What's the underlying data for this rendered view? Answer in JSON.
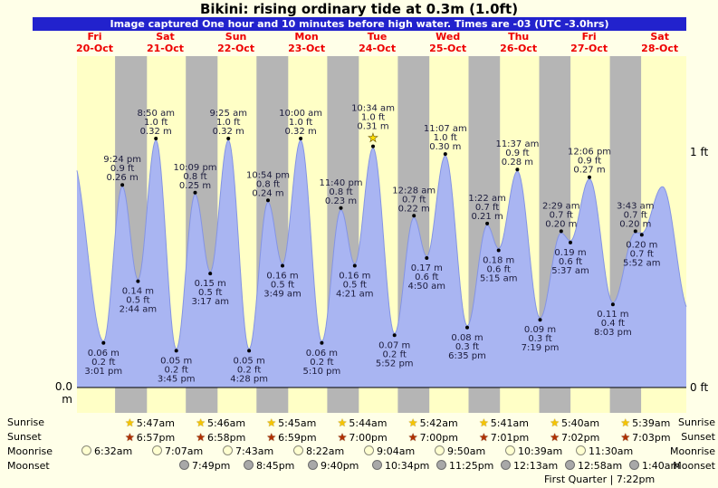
{
  "title": "Bikini: rising ordinary tide at 0.3m (1.0ft)",
  "banner": "Image captured One hour and 10 minutes before high water. Times are -03 (UTC -3.0hrs)",
  "days": [
    {
      "name": "Fri",
      "date": "20-Oct"
    },
    {
      "name": "Sat",
      "date": "21-Oct"
    },
    {
      "name": "Sun",
      "date": "22-Oct"
    },
    {
      "name": "Mon",
      "date": "23-Oct"
    },
    {
      "name": "Tue",
      "date": "24-Oct"
    },
    {
      "name": "Wed",
      "date": "25-Oct"
    },
    {
      "name": "Thu",
      "date": "26-Oct"
    },
    {
      "name": "Fri",
      "date": "27-Oct"
    },
    {
      "name": "Sat",
      "date": "28-Oct"
    }
  ],
  "axis": {
    "left_zero_m": "0.0 m",
    "right_one_ft": "1 ft",
    "right_zero_ft": "0 ft"
  },
  "chart_data": {
    "type": "area",
    "x_span_hours": [
      6,
      213
    ],
    "ylim_m": [
      0,
      0.43
    ],
    "y_left_ticks": [
      "0.0 m"
    ],
    "y_right_ticks": [
      "1 ft",
      "0 ft"
    ],
    "legend": "none",
    "day_night_bands": true,
    "events": [
      {
        "t": 15.02,
        "height_m": 0.06,
        "type": "low",
        "time": "3:01 pm",
        "ft": "0.2 ft",
        "m": "0.06 m"
      },
      {
        "t": 21.4,
        "height_m": 0.26,
        "type": "high",
        "time": "9:24 pm",
        "ft": "0.9 ft",
        "m": "0.26 m"
      },
      {
        "t": 26.73,
        "height_m": 0.14,
        "type": "low",
        "time": "2:44 am",
        "ft": "0.5 ft",
        "m": "0.14 m"
      },
      {
        "t": 32.83,
        "height_m": 0.32,
        "type": "high",
        "time": "8:50 am",
        "ft": "1.0 ft",
        "m": "0.32 m"
      },
      {
        "t": 39.75,
        "height_m": 0.05,
        "type": "low",
        "time": "3:45 pm",
        "ft": "0.2 ft",
        "m": "0.05 m"
      },
      {
        "t": 46.15,
        "height_m": 0.25,
        "type": "high",
        "time": "10:09 pm",
        "ft": "0.8 ft",
        "m": "0.25 m"
      },
      {
        "t": 51.28,
        "height_m": 0.15,
        "type": "low",
        "time": "3:17 am",
        "ft": "0.5 ft",
        "m": "0.15 m"
      },
      {
        "t": 57.42,
        "height_m": 0.32,
        "type": "high",
        "time": "9:25 am",
        "ft": "1.0 ft",
        "m": "0.32 m"
      },
      {
        "t": 64.47,
        "height_m": 0.05,
        "type": "low",
        "time": "4:28 pm",
        "ft": "0.2 ft",
        "m": "0.05 m"
      },
      {
        "t": 70.9,
        "height_m": 0.24,
        "type": "high",
        "time": "10:54 pm",
        "ft": "0.8 ft",
        "m": "0.24 m"
      },
      {
        "t": 75.82,
        "height_m": 0.16,
        "type": "low",
        "time": "3:49 am",
        "ft": "0.5 ft",
        "m": "0.16 m"
      },
      {
        "t": 82.0,
        "height_m": 0.32,
        "type": "high",
        "time": "10:00 am",
        "ft": "1.0 ft",
        "m": "0.32 m"
      },
      {
        "t": 89.17,
        "height_m": 0.06,
        "type": "low",
        "time": "5:10 pm",
        "ft": "0.2 ft",
        "m": "0.06 m"
      },
      {
        "t": 95.67,
        "height_m": 0.23,
        "type": "high",
        "time": "11:40 pm",
        "ft": "0.8 ft",
        "m": "0.23 m"
      },
      {
        "t": 100.35,
        "height_m": 0.16,
        "type": "low",
        "time": "4:21 am",
        "ft": "0.5 ft",
        "m": "0.16 m"
      },
      {
        "t": 106.57,
        "height_m": 0.31,
        "type": "high",
        "time": "10:34 am",
        "ft": "1.0 ft",
        "m": "0.31 m"
      },
      {
        "t": 113.87,
        "height_m": 0.07,
        "type": "low",
        "time": "5:52 pm",
        "ft": "0.2 ft",
        "m": "0.07 m"
      },
      {
        "t": 120.47,
        "height_m": 0.22,
        "type": "high",
        "time": "12:28 am",
        "ft": "0.7 ft",
        "m": "0.22 m"
      },
      {
        "t": 124.83,
        "height_m": 0.17,
        "type": "low",
        "time": "4:50 am",
        "ft": "0.6 ft",
        "m": "0.17 m"
      },
      {
        "t": 131.12,
        "height_m": 0.3,
        "type": "high",
        "time": "11:07 am",
        "ft": "1.0 ft",
        "m": "0.30 m"
      },
      {
        "t": 138.58,
        "height_m": 0.08,
        "type": "low",
        "time": "6:35 pm",
        "ft": "0.3 ft",
        "m": "0.08 m"
      },
      {
        "t": 145.37,
        "height_m": 0.21,
        "type": "high",
        "time": "1:22 am",
        "ft": "0.7 ft",
        "m": "0.21 m"
      },
      {
        "t": 149.25,
        "height_m": 0.18,
        "type": "low",
        "time": "5:15 am",
        "ft": "0.6 ft",
        "m": "0.18 m"
      },
      {
        "t": 155.62,
        "height_m": 0.28,
        "type": "high",
        "time": "11:37 am",
        "ft": "0.9 ft",
        "m": "0.28 m"
      },
      {
        "t": 163.32,
        "height_m": 0.09,
        "type": "low",
        "time": "7:19 pm",
        "ft": "0.3 ft",
        "m": "0.09 m"
      },
      {
        "t": 170.48,
        "height_m": 0.2,
        "type": "high",
        "time": "2:29 am",
        "ft": "0.7 ft",
        "m": "0.20 m"
      },
      {
        "t": 173.62,
        "height_m": 0.19,
        "type": "low",
        "time": "5:37 am",
        "ft": "0.6 ft",
        "m": "0.19 m"
      },
      {
        "t": 180.1,
        "height_m": 0.27,
        "type": "high",
        "time": "12:06 pm",
        "ft": "0.9 ft",
        "m": "0.27 m"
      },
      {
        "t": 188.05,
        "height_m": 0.11,
        "type": "low",
        "time": "8:03 pm",
        "ft": "0.4 ft",
        "m": "0.11 m"
      },
      {
        "t": 195.72,
        "height_m": 0.2,
        "type": "high",
        "time": "3:43 am",
        "ft": "0.7 ft",
        "m": "0.20 m"
      },
      {
        "t": 197.87,
        "height_m": 0.2,
        "type": "low",
        "time": "5:52 am",
        "ft": "0.7 ft",
        "m": "0.20 m"
      }
    ],
    "edge_events": {
      "before": [
        {
          "t": 4.0,
          "height_m": 0.3
        }
      ],
      "after": [
        {
          "t": 204.9,
          "height_m": 0.26
        },
        {
          "t": 214.0,
          "height_m": 0.1
        }
      ]
    },
    "marker": {
      "event_index": 15,
      "icon": "star",
      "time": "10:34 am"
    }
  },
  "astro": {
    "rows": [
      {
        "label": "Sunrise",
        "icon": "sunrise-star-yellow",
        "times": [
          "5:47am",
          "5:46am",
          "5:45am",
          "5:44am",
          "5:42am",
          "5:41am",
          "5:40am",
          "5:39am"
        ]
      },
      {
        "label": "Sunset",
        "icon": "sunset-star-red",
        "times": [
          "6:57pm",
          "6:58pm",
          "6:59pm",
          "7:00pm",
          "7:00pm",
          "7:01pm",
          "7:02pm",
          "7:03pm"
        ]
      },
      {
        "label": "Moonrise",
        "icon": "moon-circle-light",
        "times": [
          "6:32am",
          "7:07am",
          "7:43am",
          "8:22am",
          "9:04am",
          "9:50am",
          "10:39am",
          "11:30am"
        ]
      },
      {
        "label": "Moonset",
        "icon": "moon-circle-gray",
        "times": [
          "7:49pm",
          "8:45pm",
          "9:40pm",
          "10:34pm",
          "11:25pm",
          "12:13am",
          "12:58am",
          "1:40am"
        ]
      }
    ],
    "note": "First Quarter | 7:22pm"
  },
  "colors": {
    "page_bg": "#ffffe8",
    "day_band": "#ffffc6",
    "night_band": "#b5b5b5",
    "tide_fill": "#a9b5f2",
    "tide_stroke": "#8494e4",
    "banner_bg": "#2222cd",
    "day_header_red": "#ee0000",
    "label_text": "#1c1c3c"
  }
}
